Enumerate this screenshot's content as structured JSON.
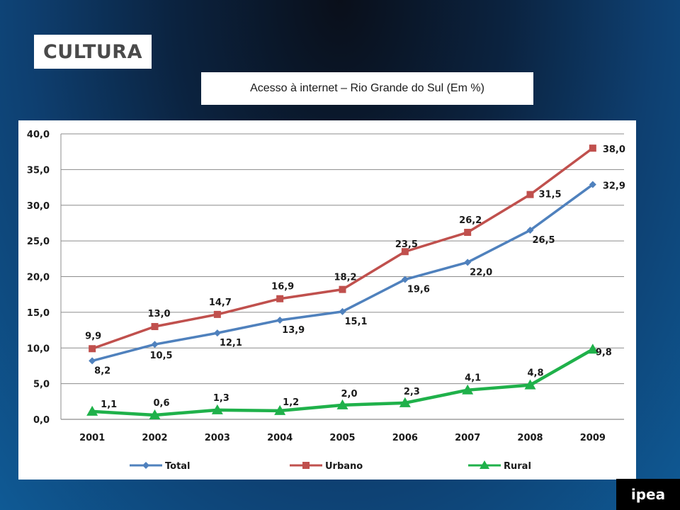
{
  "header": {
    "section_label": "CULTURA"
  },
  "chart_data": {
    "type": "line",
    "title": "Acesso à internet – Rio Grande do Sul (Em %)",
    "xlabel": "",
    "ylabel": "",
    "categories": [
      "2001",
      "2002",
      "2003",
      "2004",
      "2005",
      "2006",
      "2007",
      "2008",
      "2009"
    ],
    "ylim": [
      0,
      40
    ],
    "yticks": [
      0,
      5,
      10,
      15,
      20,
      25,
      30,
      35,
      40
    ],
    "ytick_labels": [
      "0,0",
      "5,0",
      "10,0",
      "15,0",
      "20,0",
      "25,0",
      "30,0",
      "35,0",
      "40,0"
    ],
    "grid": true,
    "legend_position": "bottom",
    "series": [
      {
        "name": "Total",
        "color": "#4f81bd",
        "marker": "diamond",
        "values": [
          8.2,
          10.5,
          12.1,
          13.9,
          15.1,
          19.6,
          22.0,
          26.5,
          32.9
        ],
        "labels": [
          "8,2",
          "10,5",
          "12,1",
          "13,9",
          "15,1",
          "19,6",
          "22,0",
          "26,5",
          "32,9"
        ]
      },
      {
        "name": "Urbano",
        "color": "#c0504d",
        "marker": "square",
        "values": [
          9.9,
          13.0,
          14.7,
          16.9,
          18.2,
          23.5,
          26.2,
          31.5,
          38.0
        ],
        "labels": [
          "9,9",
          "13,0",
          "14,7",
          "16,9",
          "18,2",
          "23,5",
          "26,2",
          "31,5",
          "38,0"
        ]
      },
      {
        "name": "Rural",
        "color": "#1fb14a",
        "marker": "triangle",
        "values": [
          1.1,
          0.6,
          1.3,
          1.2,
          2.0,
          2.3,
          4.1,
          4.8,
          9.8
        ],
        "labels": [
          "1,1",
          "0,6",
          "1,3",
          "1,2",
          "2,0",
          "2,3",
          "4,1",
          "4,8",
          "9,8"
        ]
      }
    ]
  },
  "footer": {
    "logo_text": "ipea"
  }
}
